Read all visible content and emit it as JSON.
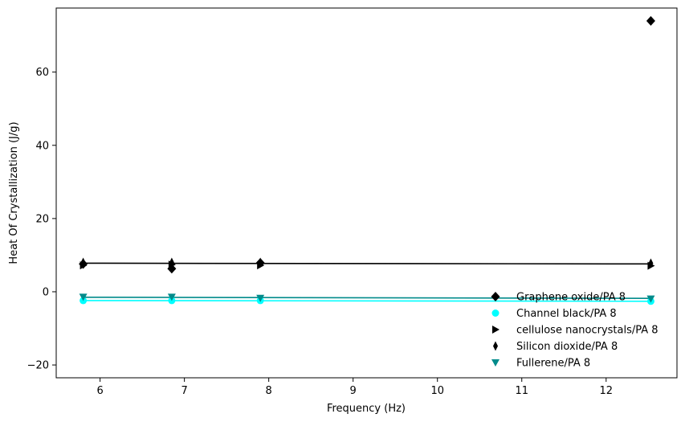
{
  "chart_data": {
    "type": "scatter",
    "title": "",
    "xlabel": "Frequency (Hz)",
    "ylabel": "Heat Of Crystallization (J/g)",
    "xlim": [
      5.48,
      12.84
    ],
    "ylim": [
      -23.5,
      77.5
    ],
    "xticks": [
      6,
      7,
      8,
      9,
      10,
      11,
      12
    ],
    "yticks": [
      -20,
      0,
      20,
      40,
      60
    ],
    "grid": false,
    "legend_position": "lower-right",
    "series": [
      {
        "name": "Graphene oxide/PA 8",
        "marker": "diamond",
        "color": "#000000",
        "x": [
          5.8,
          6.85,
          7.9,
          12.53
        ],
        "y": [
          7.6,
          6.3,
          7.9,
          74.0
        ]
      },
      {
        "name": "Channel black/PA 8",
        "marker": "circle",
        "color": "#00FFFF",
        "x": [
          5.8,
          6.85,
          7.9,
          12.53
        ],
        "y": [
          -2.4,
          -2.4,
          -2.4,
          -2.6
        ]
      },
      {
        "name": "cellulose nanocrystals/PA 8",
        "marker": "triangle-right",
        "color": "#000000",
        "x": [
          5.8,
          6.85,
          7.9,
          12.53
        ],
        "y": [
          7.2,
          7.4,
          7.2,
          7.1
        ]
      },
      {
        "name": "Silicon dioxide/PA 8",
        "marker": "thin-diamond",
        "color": "#000000",
        "x": [
          5.8,
          6.85,
          7.9,
          12.53
        ],
        "y": [
          8.0,
          8.0,
          8.0,
          7.8
        ]
      },
      {
        "name": "Fullerene/PA 8",
        "marker": "triangle-down",
        "color": "#008B8B",
        "x": [
          5.8,
          6.85,
          7.9,
          12.53
        ],
        "y": [
          -1.4,
          -1.4,
          -1.7,
          -1.9
        ]
      }
    ],
    "fit_lines": [
      {
        "color": "#000000",
        "x": [
          5.8,
          12.53
        ],
        "y": [
          7.8,
          7.6
        ]
      },
      {
        "color": "#00FFFF",
        "x": [
          5.8,
          12.53
        ],
        "y": [
          -2.4,
          -2.6
        ]
      },
      {
        "color": "#008B8B",
        "x": [
          5.8,
          12.53
        ],
        "y": [
          -1.5,
          -1.8
        ]
      }
    ]
  }
}
